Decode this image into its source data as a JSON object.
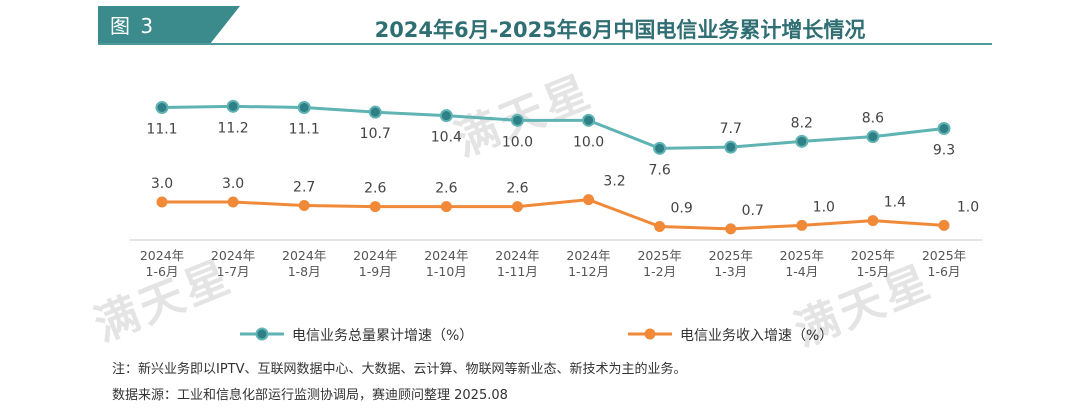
{
  "header": {
    "figure_label": "图 3",
    "title": "2024年6月-2025年6月中国电信业务累计增长情况"
  },
  "chart_data": {
    "type": "line",
    "categories": [
      [
        "2024年",
        "1-6月"
      ],
      [
        "2024年",
        "1-7月"
      ],
      [
        "2024年",
        "1-8月"
      ],
      [
        "2024年",
        "1-9月"
      ],
      [
        "2024年",
        "1-10月"
      ],
      [
        "2024年",
        "1-11月"
      ],
      [
        "2024年",
        "1-12月"
      ],
      [
        "2025年",
        "1-2月"
      ],
      [
        "2025年",
        "1-3月"
      ],
      [
        "2025年",
        "1-4月"
      ],
      [
        "2025年",
        "1-5月"
      ],
      [
        "2025年",
        "1-6月"
      ]
    ],
    "series": [
      {
        "name": "电信业务总量累计增速（%）",
        "color": "#5fb3b3",
        "marker_color": "#2f7f86",
        "values": [
          11.1,
          11.2,
          11.1,
          10.7,
          10.4,
          10.0,
          10.0,
          7.6,
          7.7,
          8.2,
          8.6,
          9.3
        ],
        "labels": [
          "11.1",
          "11.2",
          "11.1",
          "10.7",
          "10.4",
          "10.0",
          "10.0",
          "7.6",
          "7.7",
          "8.2",
          "8.6",
          "9.3"
        ]
      },
      {
        "name": "电信业务收入增速（%）",
        "color": "#f08a38",
        "marker_color": "#f08a38",
        "values": [
          3.0,
          3.0,
          2.7,
          2.6,
          2.6,
          2.6,
          3.2,
          0.9,
          0.7,
          1.0,
          1.4,
          1.0
        ],
        "labels": [
          "3.0",
          "3.0",
          "2.7",
          "2.6",
          "2.6",
          "2.6",
          "3.2",
          "0.9",
          "0.7",
          "1.0",
          "1.4",
          "1.0"
        ]
      }
    ],
    "ylim": [
      0,
      12
    ],
    "grid": false,
    "legend_position": "bottom"
  },
  "notes": {
    "note": "注：新兴业务即以IPTV、互联网数据中心、大数据、云计算、物联网等新业态、新技术为主的业务。",
    "source": "数据来源：工业和信息化部运行监测协调局，赛迪顾问整理 2025.08"
  },
  "watermark": {
    "text": "满天星"
  },
  "colors": {
    "brand_teal": "#3b8a8c",
    "title_teal": "#2f6f73"
  }
}
